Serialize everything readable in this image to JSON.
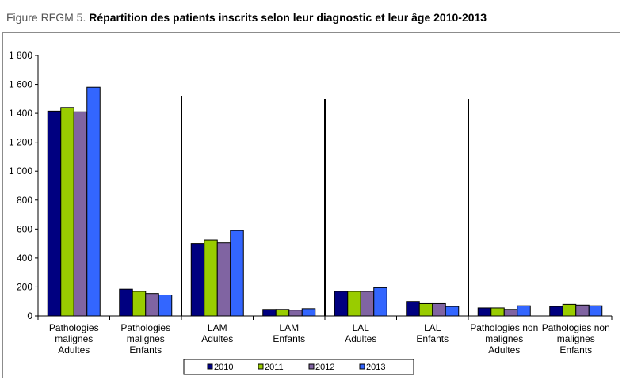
{
  "title": {
    "prefix": "Figure RFGM 5.",
    "main": "Répartition des patients inscrits selon leur diagnostic et leur âge 2010-2013"
  },
  "chart_data": {
    "type": "bar",
    "categories": [
      [
        "Pathologies",
        "malignes",
        "Adultes"
      ],
      [
        "Pathologies",
        "malignes",
        "Enfants"
      ],
      [
        "LAM",
        "Adultes"
      ],
      [
        "LAM",
        "Enfants"
      ],
      [
        "LAL",
        "Adultes"
      ],
      [
        "LAL",
        "Enfants"
      ],
      [
        "Pathologies non",
        "malignes",
        "Adultes"
      ],
      [
        "Pathologies non",
        "malignes",
        "Enfants"
      ]
    ],
    "series": [
      {
        "name": "2010",
        "color": "#000080",
        "values": [
          1415,
          185,
          500,
          45,
          170,
          100,
          55,
          65
        ]
      },
      {
        "name": "2011",
        "color": "#99cc00",
        "values": [
          1440,
          170,
          525,
          45,
          170,
          85,
          55,
          80
        ]
      },
      {
        "name": "2012",
        "color": "#8064a2",
        "values": [
          1410,
          155,
          505,
          40,
          170,
          85,
          45,
          75
        ]
      },
      {
        "name": "2013",
        "color": "#3366ff",
        "values": [
          1580,
          145,
          590,
          50,
          195,
          65,
          70,
          70
        ]
      }
    ],
    "ylim": [
      0,
      1800
    ],
    "yticks": [
      0,
      200,
      400,
      600,
      800,
      1000,
      1200,
      1400,
      1600,
      1800
    ],
    "ytick_labels": [
      "0",
      "200",
      "400",
      "600",
      "800",
      "1 000",
      "1 200",
      "1 400",
      "1 600",
      "1 800"
    ],
    "group_separators_after": [
      1,
      3,
      5
    ],
    "grid": false,
    "legend_position": "bottom-center"
  }
}
